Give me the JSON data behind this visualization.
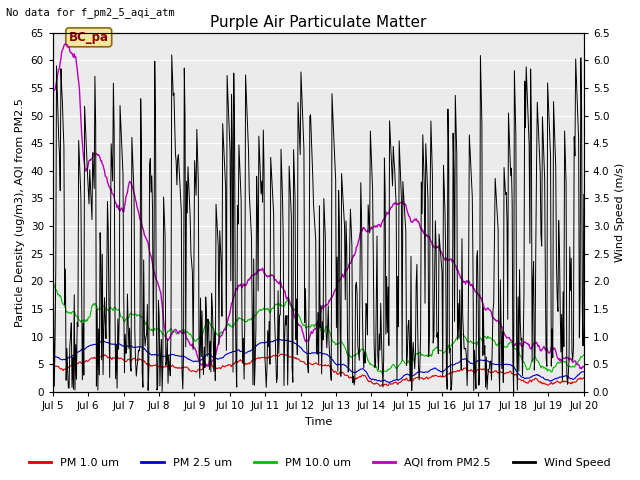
{
  "title": "Purple Air Particulate Matter",
  "subtitle": "No data for f_pm2_5_aqi_atm",
  "ylabel_left": "Particle Density (ug/m3), AQI from PM2.5",
  "ylabel_right": "Wind Speed (m/s)",
  "xlabel": "Time",
  "annotation": "BC_pa",
  "ylim_left": [
    0,
    65
  ],
  "ylim_right": [
    0,
    6.5
  ],
  "colors": {
    "pm1": "#dd0000",
    "pm25": "#0000cc",
    "pm10": "#00bb00",
    "aqi": "#bb00bb",
    "wind": "#000000"
  },
  "legend_labels": [
    "PM 1.0 um",
    "PM 2.5 um",
    "PM 10.0 um",
    "AQI from PM2.5",
    "Wind Speed"
  ],
  "bg_color": "#ffffff",
  "plot_bg": "#ebebeb",
  "grid_color": "#ffffff",
  "title_fontsize": 11,
  "label_fontsize": 8,
  "tick_fontsize": 7.5,
  "legend_fontsize": 8
}
